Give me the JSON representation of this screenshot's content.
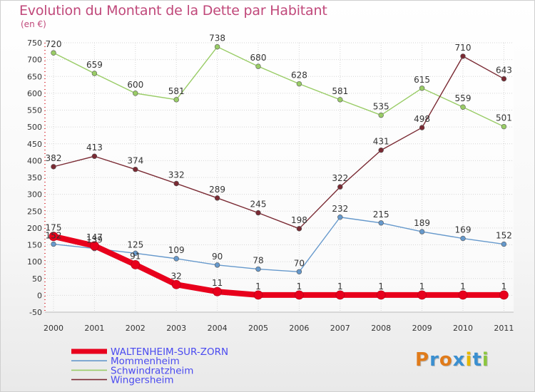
{
  "title": "Evolution du Montant de la Dette par Habitant",
  "subtitle": "(en €)",
  "logo": "Proxiti",
  "chart_data": {
    "type": "line",
    "title": "Evolution du Montant de la Dette par Habitant",
    "ylabel": "(en €)",
    "x": [
      "2000",
      "2001",
      "2002",
      "2003",
      "2004",
      "2005",
      "2006",
      "2007",
      "2008",
      "2009",
      "2010",
      "2011"
    ],
    "ylim": [
      -50,
      750
    ],
    "yticks": [
      -50,
      0,
      50,
      100,
      150,
      200,
      250,
      300,
      350,
      400,
      450,
      500,
      550,
      600,
      650,
      700,
      750
    ],
    "grid": true,
    "legend_position": "bottom-left",
    "series": [
      {
        "name": "WALTENHEIM-SUR-ZORN",
        "color": "#e8001c",
        "values": [
          175,
          147,
          91,
          32,
          11,
          1,
          1,
          1,
          1,
          1,
          1,
          1
        ],
        "labels": [
          "175",
          "147",
          "91",
          "32",
          "11",
          "1",
          "1",
          "1",
          "1",
          "1",
          "1",
          "1"
        ]
      },
      {
        "name": "Mommenheim",
        "color": "#6699cc",
        "values": [
          152,
          139,
          125,
          109,
          90,
          78,
          70,
          232,
          215,
          189,
          169,
          152
        ],
        "labels": [
          "152",
          "139",
          "125",
          "109",
          "90",
          "78",
          "70",
          "232",
          "215",
          "189",
          "169",
          "152"
        ]
      },
      {
        "name": "Schwindratzheim",
        "color": "#99cc66",
        "values": [
          720,
          659,
          600,
          581,
          738,
          680,
          628,
          581,
          535,
          615,
          559,
          501
        ],
        "labels": [
          "720",
          "659",
          "600",
          "581",
          "738",
          "680",
          "628",
          "581",
          "535",
          "615",
          "559",
          "501"
        ]
      },
      {
        "name": "Wingersheim",
        "color": "#7a2a33",
        "values": [
          382,
          413,
          374,
          332,
          289,
          245,
          198,
          322,
          431,
          498,
          710,
          643
        ],
        "labels": [
          "382",
          "413",
          "374",
          "332",
          "289",
          "245",
          "198",
          "322",
          "431",
          "498",
          "710",
          "643"
        ]
      }
    ]
  }
}
